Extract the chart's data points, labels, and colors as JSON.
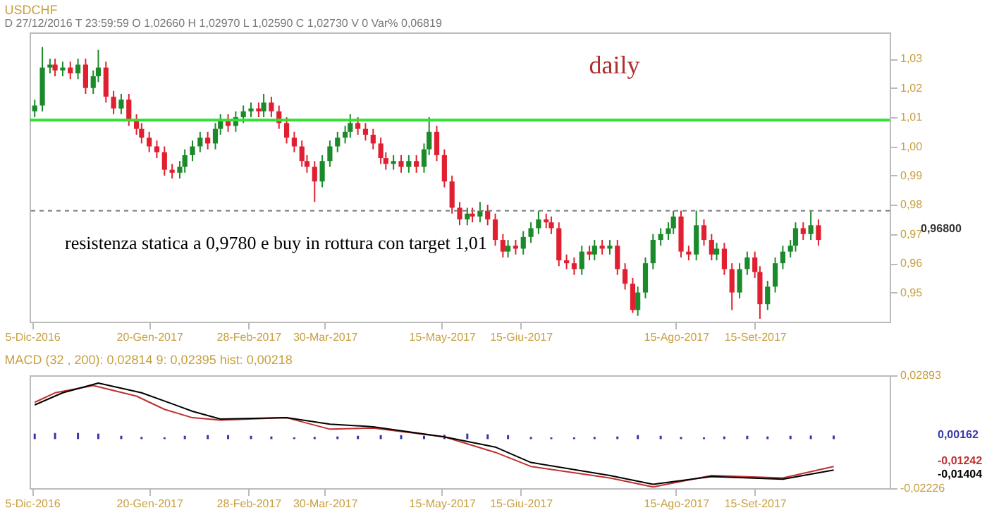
{
  "chart_data": [
    {
      "type": "candlestick",
      "title": "USDCHF",
      "subtitle": "D 27/12/2016  T 23:59:59  O 1,02660  H 1,02970  L 1,02590  C 1,02730  V 0  Var% 0,06819",
      "annotations": [
        "daily",
        "resistenza statica a 0,9780 e buy in rottura con target 1,01",
        "0,96800"
      ],
      "x": [
        "2016-12-06",
        "2016-12-09",
        "2016-12-12",
        "2016-12-14",
        "2016-12-17",
        "2016-12-20",
        "2016-12-23",
        "2016-12-26",
        "2016-12-29",
        "2016-12-31",
        "2017-01-03",
        "2017-01-06",
        "2017-01-09",
        "2017-01-12",
        "2017-01-15",
        "2017-01-17",
        "2017-01-20",
        "2017-01-23",
        "2017-01-26",
        "2017-01-29",
        "2017-02-01",
        "2017-02-03",
        "2017-02-06",
        "2017-02-09",
        "2017-02-12",
        "2017-02-15",
        "2017-02-17",
        "2017-02-20",
        "2017-02-23",
        "2017-02-26",
        "2017-03-01",
        "2017-03-04",
        "2017-03-06",
        "2017-03-09",
        "2017-03-12",
        "2017-03-15",
        "2017-03-18",
        "2017-03-21",
        "2017-03-23",
        "2017-03-26",
        "2017-03-29",
        "2017-04-01",
        "2017-04-04",
        "2017-04-07",
        "2017-04-09",
        "2017-04-12",
        "2017-04-15",
        "2017-04-18",
        "2017-04-21",
        "2017-04-23",
        "2017-04-26",
        "2017-04-29",
        "2017-05-02",
        "2017-05-05",
        "2017-05-08",
        "2017-05-10",
        "2017-05-13",
        "2017-05-16",
        "2017-05-19",
        "2017-05-22",
        "2017-05-25",
        "2017-05-27",
        "2017-05-30",
        "2017-06-02",
        "2017-06-05",
        "2017-06-08",
        "2017-06-10",
        "2017-06-13",
        "2017-06-16",
        "2017-06-19",
        "2017-06-22",
        "2017-06-25",
        "2017-06-27",
        "2017-06-30",
        "2017-07-03",
        "2017-07-06",
        "2017-07-09",
        "2017-07-12",
        "2017-07-14",
        "2017-07-17",
        "2017-07-20",
        "2017-07-23",
        "2017-07-26",
        "2017-07-29",
        "2017-07-31",
        "2017-08-03",
        "2017-08-06",
        "2017-08-09",
        "2017-08-12",
        "2017-08-14",
        "2017-08-17",
        "2017-08-20",
        "2017-08-23",
        "2017-08-26",
        "2017-08-29",
        "2017-08-31",
        "2017-09-03",
        "2017-09-06",
        "2017-09-09",
        "2017-09-12",
        "2017-09-15",
        "2017-09-17",
        "2017-09-20",
        "2017-09-23",
        "2017-09-26",
        "2017-09-29",
        "2017-10-01",
        "2017-10-04",
        "2017-10-07",
        "2017-10-10"
      ],
      "ohlc": [
        [
          1.012,
          1.016,
          1.01,
          1.014
        ],
        [
          1.014,
          1.034,
          1.012,
          1.027
        ],
        [
          1.027,
          1.03,
          1.025,
          1.028
        ],
        [
          1.028,
          1.03,
          1.024,
          1.026
        ],
        [
          1.026,
          1.029,
          1.024,
          1.027
        ],
        [
          1.027,
          1.029,
          1.023,
          1.025
        ],
        [
          1.025,
          1.03,
          1.023,
          1.028
        ],
        [
          1.028,
          1.03,
          1.018,
          1.02
        ],
        [
          1.02,
          1.026,
          1.018,
          1.024
        ],
        [
          1.024,
          1.033,
          1.022,
          1.027
        ],
        [
          1.027,
          1.029,
          1.015,
          1.017
        ],
        [
          1.017,
          1.019,
          1.011,
          1.013
        ],
        [
          1.013,
          1.018,
          1.011,
          1.016
        ],
        [
          1.016,
          1.018,
          1.007,
          1.009
        ],
        [
          1.009,
          1.011,
          1.004,
          1.006
        ],
        [
          1.006,
          1.008,
          1.001,
          1.003
        ],
        [
          1.003,
          1.005,
          0.998,
          1.0
        ],
        [
          1.0,
          1.002,
          0.996,
          0.998
        ],
        [
          0.998,
          1.0,
          0.99,
          0.992
        ],
        [
          0.992,
          0.994,
          0.989,
          0.991
        ],
        [
          0.991,
          0.995,
          0.989,
          0.993
        ],
        [
          0.993,
          0.999,
          0.991,
          0.997
        ],
        [
          0.997,
          1.002,
          0.995,
          1.0
        ],
        [
          1.0,
          1.005,
          0.998,
          1.003
        ],
        [
          1.003,
          1.005,
          0.999,
          1.001
        ],
        [
          1.001,
          1.008,
          0.999,
          1.006
        ],
        [
          1.006,
          1.011,
          1.004,
          1.009
        ],
        [
          1.009,
          1.011,
          1.005,
          1.007
        ],
        [
          1.007,
          1.012,
          1.005,
          1.01
        ],
        [
          1.01,
          1.014,
          1.008,
          1.012
        ],
        [
          1.012,
          1.015,
          1.01,
          1.013
        ],
        [
          1.013,
          1.015,
          1.01,
          1.012
        ],
        [
          1.012,
          1.018,
          1.01,
          1.015
        ],
        [
          1.015,
          1.017,
          1.01,
          1.012
        ],
        [
          1.012,
          1.014,
          1.006,
          1.008
        ],
        [
          1.008,
          1.01,
          1.001,
          1.003
        ],
        [
          1.003,
          1.005,
          0.998,
          1.0
        ],
        [
          1.0,
          1.002,
          0.993,
          0.995
        ],
        [
          0.995,
          0.997,
          0.991,
          0.993
        ],
        [
          0.993,
          0.995,
          0.981,
          0.988
        ],
        [
          0.988,
          0.997,
          0.986,
          0.995
        ],
        [
          0.995,
          1.002,
          0.993,
          1.0
        ],
        [
          1.0,
          1.005,
          0.998,
          1.003
        ],
        [
          1.003,
          1.007,
          1.001,
          1.005
        ],
        [
          1.005,
          1.011,
          1.003,
          1.008
        ],
        [
          1.008,
          1.01,
          1.004,
          1.006
        ],
        [
          1.006,
          1.008,
          1.002,
          1.004
        ],
        [
          1.004,
          1.006,
          0.999,
          1.001
        ],
        [
          1.001,
          1.003,
          0.994,
          0.996
        ],
        [
          0.996,
          0.998,
          0.992,
          0.994
        ],
        [
          0.994,
          0.997,
          0.992,
          0.995
        ],
        [
          0.995,
          0.997,
          0.991,
          0.993
        ],
        [
          0.993,
          0.997,
          0.991,
          0.995
        ],
        [
          0.995,
          0.997,
          0.991,
          0.993
        ],
        [
          0.993,
          1.001,
          0.991,
          0.999
        ],
        [
          0.999,
          1.01,
          0.997,
          1.005
        ],
        [
          1.005,
          1.007,
          0.995,
          0.997
        ],
        [
          0.997,
          0.999,
          0.986,
          0.988
        ],
        [
          0.988,
          0.99,
          0.977,
          0.979
        ],
        [
          0.979,
          0.981,
          0.973,
          0.975
        ],
        [
          0.975,
          0.979,
          0.973,
          0.977
        ],
        [
          0.977,
          0.979,
          0.974,
          0.976
        ],
        [
          0.976,
          0.981,
          0.974,
          0.978
        ],
        [
          0.978,
          0.98,
          0.973,
          0.975
        ],
        [
          0.975,
          0.977,
          0.966,
          0.968
        ],
        [
          0.968,
          0.97,
          0.962,
          0.964
        ],
        [
          0.964,
          0.968,
          0.962,
          0.966
        ],
        [
          0.966,
          0.968,
          0.963,
          0.965
        ],
        [
          0.965,
          0.971,
          0.963,
          0.969
        ],
        [
          0.969,
          0.974,
          0.967,
          0.972
        ],
        [
          0.972,
          0.978,
          0.97,
          0.975
        ],
        [
          0.975,
          0.977,
          0.972,
          0.974
        ],
        [
          0.974,
          0.976,
          0.97,
          0.972
        ],
        [
          0.972,
          0.974,
          0.959,
          0.961
        ],
        [
          0.961,
          0.963,
          0.958,
          0.96
        ],
        [
          0.96,
          0.962,
          0.956,
          0.958
        ],
        [
          0.958,
          0.966,
          0.956,
          0.964
        ],
        [
          0.964,
          0.966,
          0.961,
          0.963
        ],
        [
          0.963,
          0.968,
          0.961,
          0.966
        ],
        [
          0.966,
          0.968,
          0.963,
          0.965
        ],
        [
          0.965,
          0.968,
          0.963,
          0.966
        ],
        [
          0.966,
          0.968,
          0.956,
          0.958
        ],
        [
          0.958,
          0.96,
          0.951,
          0.953
        ],
        [
          0.953,
          0.955,
          0.943,
          0.944
        ],
        [
          0.944,
          0.952,
          0.942,
          0.95
        ],
        [
          0.95,
          0.962,
          0.948,
          0.96
        ],
        [
          0.96,
          0.97,
          0.958,
          0.968
        ],
        [
          0.968,
          0.972,
          0.966,
          0.97
        ],
        [
          0.97,
          0.974,
          0.968,
          0.972
        ],
        [
          0.972,
          0.978,
          0.97,
          0.976
        ],
        [
          0.976,
          0.978,
          0.962,
          0.964
        ],
        [
          0.964,
          0.966,
          0.961,
          0.963
        ],
        [
          0.963,
          0.978,
          0.961,
          0.973
        ],
        [
          0.973,
          0.975,
          0.966,
          0.968
        ],
        [
          0.968,
          0.97,
          0.961,
          0.963
        ],
        [
          0.963,
          0.967,
          0.961,
          0.965
        ],
        [
          0.965,
          0.967,
          0.956,
          0.958
        ],
        [
          0.958,
          0.96,
          0.944,
          0.95
        ],
        [
          0.95,
          0.96,
          0.948,
          0.958
        ],
        [
          0.958,
          0.964,
          0.956,
          0.962
        ],
        [
          0.962,
          0.964,
          0.955,
          0.957
        ],
        [
          0.957,
          0.959,
          0.941,
          0.946
        ],
        [
          0.946,
          0.954,
          0.944,
          0.952
        ],
        [
          0.952,
          0.962,
          0.95,
          0.96
        ],
        [
          0.96,
          0.966,
          0.958,
          0.964
        ],
        [
          0.964,
          0.968,
          0.962,
          0.966
        ],
        [
          0.966,
          0.974,
          0.964,
          0.972
        ],
        [
          0.972,
          0.974,
          0.968,
          0.97
        ],
        [
          0.97,
          0.978,
          0.968,
          0.973
        ],
        [
          0.973,
          0.975,
          0.966,
          0.968
        ]
      ],
      "colors": [
        "#1b8a2a",
        "#1b8a2a",
        "#1b8a2a",
        "#e02030",
        "#1b8a2a",
        "#e02030",
        "#1b8a2a",
        "#e02030",
        "#1b8a2a",
        "#1b8a2a",
        "#e02030",
        "#e02030",
        "#1b8a2a",
        "#e02030",
        "#e02030",
        "#e02030",
        "#e02030",
        "#e02030",
        "#e02030",
        "#e02030",
        "#1b8a2a",
        "#1b8a2a",
        "#1b8a2a",
        "#1b8a2a",
        "#e02030",
        "#1b8a2a",
        "#1b8a2a",
        "#e02030",
        "#1b8a2a",
        "#1b8a2a",
        "#1b8a2a",
        "#e02030",
        "#1b8a2a",
        "#e02030",
        "#e02030",
        "#e02030",
        "#e02030",
        "#e02030",
        "#e02030",
        "#e02030",
        "#1b8a2a",
        "#1b8a2a",
        "#1b8a2a",
        "#1b8a2a",
        "#1b8a2a",
        "#e02030",
        "#e02030",
        "#e02030",
        "#e02030",
        "#e02030",
        "#1b8a2a",
        "#e02030",
        "#1b8a2a",
        "#e02030",
        "#1b8a2a",
        "#1b8a2a",
        "#e02030",
        "#e02030",
        "#e02030",
        "#e02030",
        "#1b8a2a",
        "#e02030",
        "#1b8a2a",
        "#e02030",
        "#e02030",
        "#e02030",
        "#1b8a2a",
        "#e02030",
        "#1b8a2a",
        "#1b8a2a",
        "#1b8a2a",
        "#e02030",
        "#e02030",
        "#e02030",
        "#e02030",
        "#e02030",
        "#1b8a2a",
        "#e02030",
        "#1b8a2a",
        "#e02030",
        "#1b8a2a",
        "#e02030",
        "#e02030",
        "#e02030",
        "#1b8a2a",
        "#1b8a2a",
        "#1b8a2a",
        "#1b8a2a",
        "#1b8a2a",
        "#1b8a2a",
        "#e02030",
        "#e02030",
        "#1b8a2a",
        "#e02030",
        "#e02030",
        "#1b8a2a",
        "#e02030",
        "#e02030",
        "#1b8a2a",
        "#1b8a2a",
        "#e02030",
        "#e02030",
        "#1b8a2a",
        "#1b8a2a",
        "#1b8a2a",
        "#1b8a2a",
        "#1b8a2a",
        "#e02030",
        "#1b8a2a",
        "#e02030"
      ],
      "ref_lines": [
        {
          "axis": "y",
          "value": 1.009,
          "color": "#33e033",
          "line_style": "solid"
        },
        {
          "axis": "y",
          "value": 0.978,
          "color": "#808080",
          "line_style": "dashed"
        }
      ],
      "xlim": [
        "2016-12-04",
        "2017-11-07"
      ],
      "xticks": [
        {
          "value": "2016-12-05",
          "label": "5-Dic-2016"
        },
        {
          "value": "2017-01-20",
          "label": "20-Gen-2017"
        },
        {
          "value": "2017-02-28",
          "label": "28-Feb-2017"
        },
        {
          "value": "2017-03-30",
          "label": "30-Mar-2017"
        },
        {
          "value": "2017-05-15",
          "label": "15-May-2017"
        },
        {
          "value": "2017-06-15",
          "label": "15-Giu-2017"
        },
        {
          "value": "2017-08-15",
          "label": "15-Ago-2017"
        },
        {
          "value": "2017-09-15",
          "label": "15-Set-2017"
        }
      ],
      "ylim": [
        0.94,
        1.039
      ],
      "yticks": [
        {
          "value": 0.95,
          "label": "0,95"
        },
        {
          "value": 0.96,
          "label": "0,96"
        },
        {
          "value": 0.97,
          "label": "0,97"
        },
        {
          "value": 0.98,
          "label": "0,98"
        },
        {
          "value": 0.99,
          "label": "0,99"
        },
        {
          "value": 1.0,
          "label": "1,00"
        },
        {
          "value": 1.01,
          "label": "1,01"
        },
        {
          "value": 1.02,
          "label": "1,02"
        },
        {
          "value": 1.03,
          "label": "1,03"
        }
      ]
    },
    {
      "type": "line",
      "title": "MACD  (32 , 200):  0,02814   9:  0,02395   hist:  0,00218",
      "annotations": [
        "0,00162",
        "-0,01242",
        "-0,01404"
      ],
      "series": [
        {
          "type": "bar",
          "color": "#3838a8",
          "x": [
            "2016-12-06",
            "2016-12-14",
            "2016-12-23",
            "2016-12-31",
            "2017-01-09",
            "2017-01-17",
            "2017-01-26",
            "2017-02-03",
            "2017-02-12",
            "2017-02-20",
            "2017-03-01",
            "2017-03-09",
            "2017-03-18",
            "2017-03-26",
            "2017-04-04",
            "2017-04-12",
            "2017-04-21",
            "2017-04-29",
            "2017-05-08",
            "2017-05-16",
            "2017-05-25",
            "2017-06-02",
            "2017-06-10",
            "2017-06-19",
            "2017-06-27",
            "2017-07-06",
            "2017-07-14",
            "2017-07-23",
            "2017-07-31",
            "2017-08-09",
            "2017-08-17",
            "2017-08-26",
            "2017-09-03",
            "2017-09-12",
            "2017-09-20",
            "2017-09-29",
            "2017-10-07",
            "2017-10-16"
          ],
          "values": [
            0.0025,
            0.0028,
            0.0028,
            0.0025,
            0.0015,
            0.001,
            0.0008,
            0.0015,
            0.0018,
            0.0018,
            0.0015,
            0.0012,
            0.0008,
            0.001,
            0.0012,
            0.0015,
            0.0018,
            0.0018,
            0.0015,
            0.002,
            0.0025,
            0.0022,
            0.0018,
            0.001,
            0.0008,
            0.0008,
            0.001,
            0.0012,
            0.0018,
            0.0015,
            0.001,
            0.0008,
            0.0012,
            0.0015,
            0.0012,
            0.0015,
            0.0016,
            0.0016
          ]
        },
        {
          "type": "line",
          "color": "#c03030",
          "x": [
            "2016-12-06",
            "2016-12-14",
            "2016-12-29",
            "2017-01-15",
            "2017-01-26",
            "2017-02-06",
            "2017-02-17",
            "2017-03-15",
            "2017-04-01",
            "2017-04-18",
            "2017-05-16",
            "2017-06-05",
            "2017-06-19",
            "2017-07-20",
            "2017-08-06",
            "2017-08-29",
            "2017-09-26",
            "2017-10-16"
          ],
          "values": [
            0.0167,
            0.021,
            0.0243,
            0.0195,
            0.0135,
            0.0097,
            0.0086,
            0.0097,
            0.0045,
            0.005,
            0.001,
            -0.006,
            -0.0124,
            -0.0176,
            -0.0217,
            -0.0165,
            -0.0176,
            -0.0124
          ]
        },
        {
          "type": "line",
          "color": "#000000",
          "x": [
            "2016-12-06",
            "2016-12-17",
            "2016-12-31",
            "2017-01-17",
            "2017-01-29",
            "2017-02-06",
            "2017-02-17",
            "2017-03-15",
            "2017-04-01",
            "2017-04-18",
            "2017-05-16",
            "2017-06-05",
            "2017-06-19",
            "2017-07-20",
            "2017-08-06",
            "2017-08-29",
            "2017-09-26",
            "2017-10-16"
          ],
          "values": [
            0.0155,
            0.021,
            0.0254,
            0.021,
            0.016,
            0.0126,
            0.0091,
            0.0097,
            0.0068,
            0.0056,
            0.001,
            -0.0036,
            -0.0106,
            -0.0165,
            -0.0205,
            -0.017,
            -0.0182,
            -0.014
          ]
        }
      ],
      "xlim": [
        "2016-12-04",
        "2017-11-07"
      ],
      "xticks": [
        {
          "value": "2016-12-05",
          "label": "5-Dic-2016"
        },
        {
          "value": "2017-01-20",
          "label": "20-Gen-2017"
        },
        {
          "value": "2017-02-28",
          "label": "28-Feb-2017"
        },
        {
          "value": "2017-03-30",
          "label": "30-Mar-2017"
        },
        {
          "value": "2017-05-15",
          "label": "15-May-2017"
        },
        {
          "value": "2017-06-15",
          "label": "15-Giu-2017"
        },
        {
          "value": "2017-08-15",
          "label": "15-Ago-2017"
        },
        {
          "value": "2017-09-15",
          "label": "15-Set-2017"
        }
      ],
      "ylim": [
        -0.02226,
        0.02893
      ],
      "yticks": [
        {
          "value": -0.02226,
          "label": "-0,02226"
        },
        {
          "value": 0.02893,
          "label": "0,02893"
        }
      ]
    }
  ]
}
